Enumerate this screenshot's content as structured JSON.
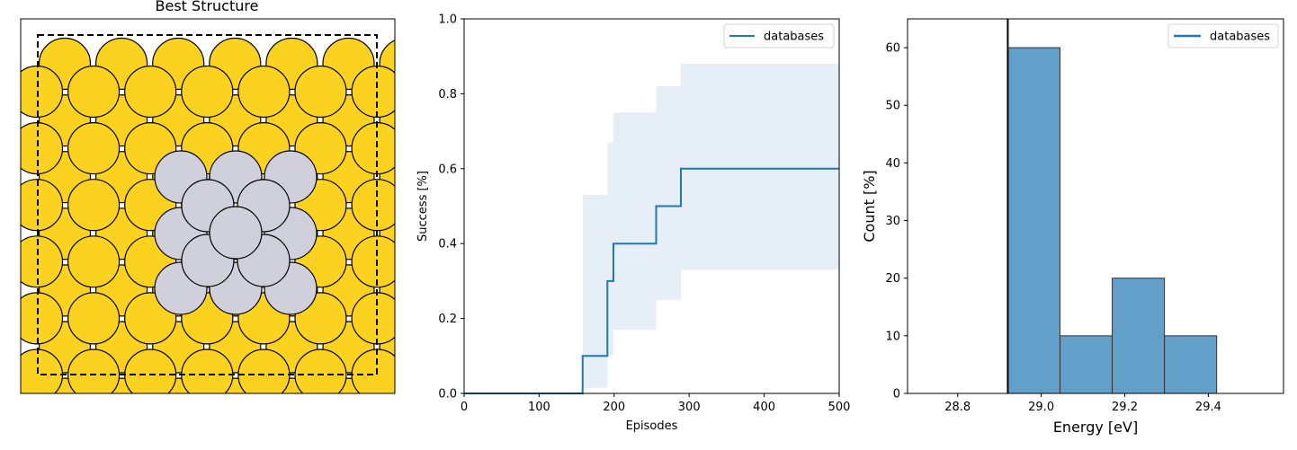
{
  "structure": {
    "title": "Best Structure",
    "colors": {
      "substrate": "#fcd221",
      "cluster": "#d0d0dc",
      "outline": "#000000",
      "background": "#ffffff"
    }
  },
  "chart_data": [
    {
      "type": "line",
      "xlabel": "Episodes",
      "ylabel": "Success [%]",
      "xlim": [
        0,
        500
      ],
      "ylim": [
        0,
        1.0
      ],
      "xticks": [
        "0",
        "100",
        "200",
        "300",
        "400",
        "500"
      ],
      "yticks": [
        "0.0",
        "0.2",
        "0.4",
        "0.6",
        "0.8",
        "1.0"
      ],
      "legend": {
        "position": "top-right",
        "entries": [
          "databases"
        ]
      },
      "line_color": "#1f77b4",
      "band_color": "#e6eff7",
      "series": [
        {
          "name": "databases",
          "x": [
            0,
            158,
            158,
            191,
            191,
            199,
            199,
            256,
            256,
            289,
            289,
            500
          ],
          "y": [
            0.0,
            0.0,
            0.1,
            0.1,
            0.3,
            0.3,
            0.4,
            0.4,
            0.5,
            0.5,
            0.6,
            0.6
          ]
        }
      ],
      "band": {
        "x": [
          158,
          191,
          191,
          199,
          199,
          256,
          256,
          289,
          289,
          500
        ],
        "lower": [
          0.015,
          0.015,
          0.1,
          0.1,
          0.17,
          0.17,
          0.25,
          0.25,
          0.33,
          0.33
        ],
        "upper": [
          0.53,
          0.53,
          0.67,
          0.67,
          0.75,
          0.75,
          0.82,
          0.82,
          0.88,
          0.88
        ]
      }
    },
    {
      "type": "bar",
      "xlabel": "Energy [eV]",
      "ylabel": "Count [%]",
      "xlim": [
        28.68,
        29.58
      ],
      "ylim": [
        0,
        65
      ],
      "xticks": [
        "28.8",
        "29.0",
        "29.2",
        "29.4"
      ],
      "yticks": [
        "0",
        "10",
        "20",
        "30",
        "40",
        "50",
        "60"
      ],
      "legend": {
        "position": "top-right",
        "entries": [
          "databases"
        ]
      },
      "bar_color": "#62a0ca",
      "edge_color": "#333333",
      "bins": [
        {
          "x0": 28.92,
          "x1": 29.045,
          "value": 60
        },
        {
          "x0": 29.045,
          "x1": 29.17,
          "value": 10
        },
        {
          "x0": 29.17,
          "x1": 29.295,
          "value": 20
        },
        {
          "x0": 29.295,
          "x1": 29.42,
          "value": 10
        }
      ],
      "vline": 28.92
    }
  ]
}
